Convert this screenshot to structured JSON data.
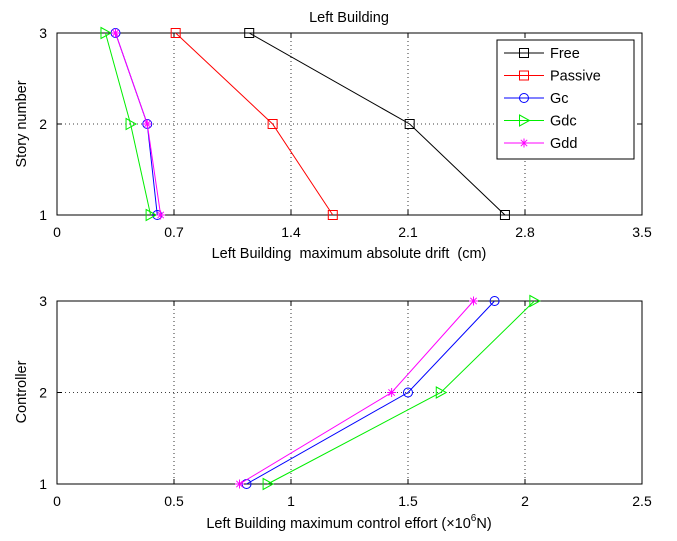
{
  "chart_data": [
    {
      "type": "line",
      "title": "Left Building",
      "xlabel": "Left Building  maximum absolute drift  (cm)",
      "ylabel": "Story number",
      "xlim": [
        0,
        3.5
      ],
      "ylim": [
        1,
        3
      ],
      "xticks": [
        0,
        0.7,
        1.4,
        2.1,
        2.8,
        3.5
      ],
      "xtick_labels": [
        "0",
        "0.7",
        "1.4",
        "2.1",
        "2.8",
        "3.5"
      ],
      "yticks": [
        1,
        2,
        3
      ],
      "ytick_labels": [
        "1",
        "2",
        "3"
      ],
      "grid": true,
      "legend": "top-right",
      "y": [
        1,
        2,
        3
      ],
      "series": [
        {
          "name": "Free",
          "color": "#000000",
          "marker": "square",
          "x": [
            2.68,
            2.11,
            1.15
          ]
        },
        {
          "name": "Passive",
          "color": "#ff0000",
          "marker": "square",
          "x": [
            1.65,
            1.29,
            0.71
          ]
        },
        {
          "name": "Gc",
          "color": "#0000ff",
          "marker": "circle",
          "x": [
            0.6,
            0.54,
            0.35
          ]
        },
        {
          "name": "Gdc",
          "color": "#00ee00",
          "marker": "triangle-right",
          "x": [
            0.56,
            0.44,
            0.29
          ]
        },
        {
          "name": "Gdd",
          "color": "#ff00ff",
          "marker": "star",
          "x": [
            0.62,
            0.54,
            0.35
          ]
        }
      ]
    },
    {
      "type": "line",
      "title": "",
      "xlabel": "Left Building maximum control effort  (×10",
      "xlabel_sup": "6",
      "xlabel_tail": "N)",
      "ylabel": "Controller",
      "xlim": [
        0,
        2.5
      ],
      "ylim": [
        1,
        3
      ],
      "xticks": [
        0,
        0.5,
        1,
        1.5,
        2,
        2.5
      ],
      "xtick_labels": [
        "0",
        "0.5",
        "1",
        "1.5",
        "2",
        "2.5"
      ],
      "yticks": [
        1,
        2,
        3
      ],
      "ytick_labels": [
        "1",
        "2",
        "3"
      ],
      "grid": true,
      "y": [
        1,
        2,
        3
      ],
      "series": [
        {
          "name": "Gc",
          "color": "#0000ff",
          "marker": "circle",
          "x": [
            0.81,
            1.5,
            1.87
          ]
        },
        {
          "name": "Gdc",
          "color": "#00ee00",
          "marker": "triangle-right",
          "x": [
            0.9,
            1.64,
            2.04
          ]
        },
        {
          "name": "Gdd",
          "color": "#ff00ff",
          "marker": "star",
          "x": [
            0.78,
            1.43,
            1.78
          ]
        }
      ]
    }
  ]
}
